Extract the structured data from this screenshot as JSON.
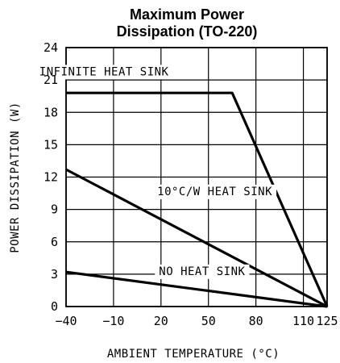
{
  "chart_data": {
    "type": "line",
    "title": [
      "Maximum Power",
      "Dissipation (TO-220)"
    ],
    "xlabel": "AMBIENT TEMPERATURE (°C)",
    "ylabel": "POWER DISSIPATION (W)",
    "xlim": [
      -40,
      125
    ],
    "ylim": [
      0,
      24
    ],
    "xticks": [
      -40,
      -10,
      20,
      50,
      80,
      110,
      125
    ],
    "yticks": [
      0,
      3,
      6,
      9,
      12,
      15,
      18,
      21,
      24
    ],
    "xtick_labels": [
      "−40",
      "−10",
      "20",
      "50",
      "80",
      "110",
      "125"
    ],
    "ytick_labels": [
      "0",
      "3",
      "6",
      "9",
      "12",
      "15",
      "18",
      "21",
      "24"
    ],
    "grid": true,
    "series": [
      {
        "name": "INFINITE HEAT SINK",
        "x": [
          -40,
          65,
          125
        ],
        "y": [
          19.8,
          19.8,
          0
        ]
      },
      {
        "name": "10°C/W HEAT SINK",
        "x": [
          -40,
          125
        ],
        "y": [
          12.7,
          0
        ]
      },
      {
        "name": "NO HEAT SINK",
        "x": [
          -40,
          125
        ],
        "y": [
          3.2,
          0
        ]
      }
    ]
  }
}
